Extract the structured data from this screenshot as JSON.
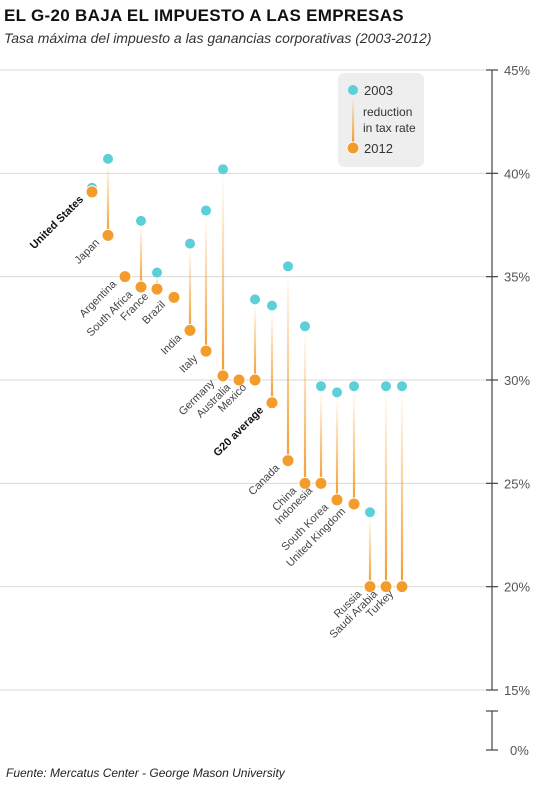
{
  "title": "EL G-20 BAJA EL IMPUESTO A LAS EMPRESAS",
  "subtitle": "Tasa máxima del impuesto a las ganancias corporativas (2003-2012)",
  "source": "Fuente: Mercatus Center - George Mason University",
  "colors": {
    "y2003": "#5ccfd9",
    "y2012": "#f39c2c",
    "grid": "#d9d9d9",
    "axis": "#444444",
    "legend_bg": "#eeeeee"
  },
  "chart_data": {
    "type": "scatter",
    "title": "EL G-20 BAJA EL IMPUESTO A LAS EMPRESAS",
    "subtitle": "Tasa máxima del impuesto a las ganancias corporativas (2003-2012)",
    "xlabel": "",
    "ylabel": "",
    "y_unit": "%",
    "ylim": [
      15,
      45
    ],
    "y_ticks": [
      "45%",
      "40%",
      "35%",
      "30%",
      "25%",
      "20%",
      "15%",
      "0%"
    ],
    "y_axis_break": true,
    "grid": true,
    "legend": {
      "position": "top-right",
      "items": [
        "2003",
        "reduction",
        "in tax rate",
        "2012"
      ]
    },
    "categories": [
      "United States",
      "Japan",
      "Argentina",
      "South Africa",
      "France",
      "Brazil",
      "India",
      "Italy",
      "Germany",
      "Australia",
      "Mexico",
      "G20 average",
      "Canada",
      "China",
      "Indonesia",
      "South Korea",
      "United Kingdom",
      "Russia",
      "Saudi Arabia",
      "Turkey"
    ],
    "highlighted": [
      "United States",
      "G20 average"
    ],
    "series": [
      {
        "name": "2003",
        "values": [
          39.3,
          40.7,
          null,
          37.7,
          35.2,
          null,
          36.6,
          38.2,
          40.2,
          null,
          33.9,
          33.6,
          35.5,
          32.6,
          29.7,
          29.4,
          29.7,
          23.6,
          29.7,
          29.7
        ]
      },
      {
        "name": "2012",
        "values": [
          39.1,
          37.0,
          35.0,
          34.5,
          34.4,
          34.0,
          32.4,
          31.4,
          30.2,
          30.0,
          30.0,
          28.9,
          26.1,
          25.0,
          25.0,
          24.2,
          24.0,
          20.0,
          20.0,
          20.0
        ]
      }
    ]
  }
}
